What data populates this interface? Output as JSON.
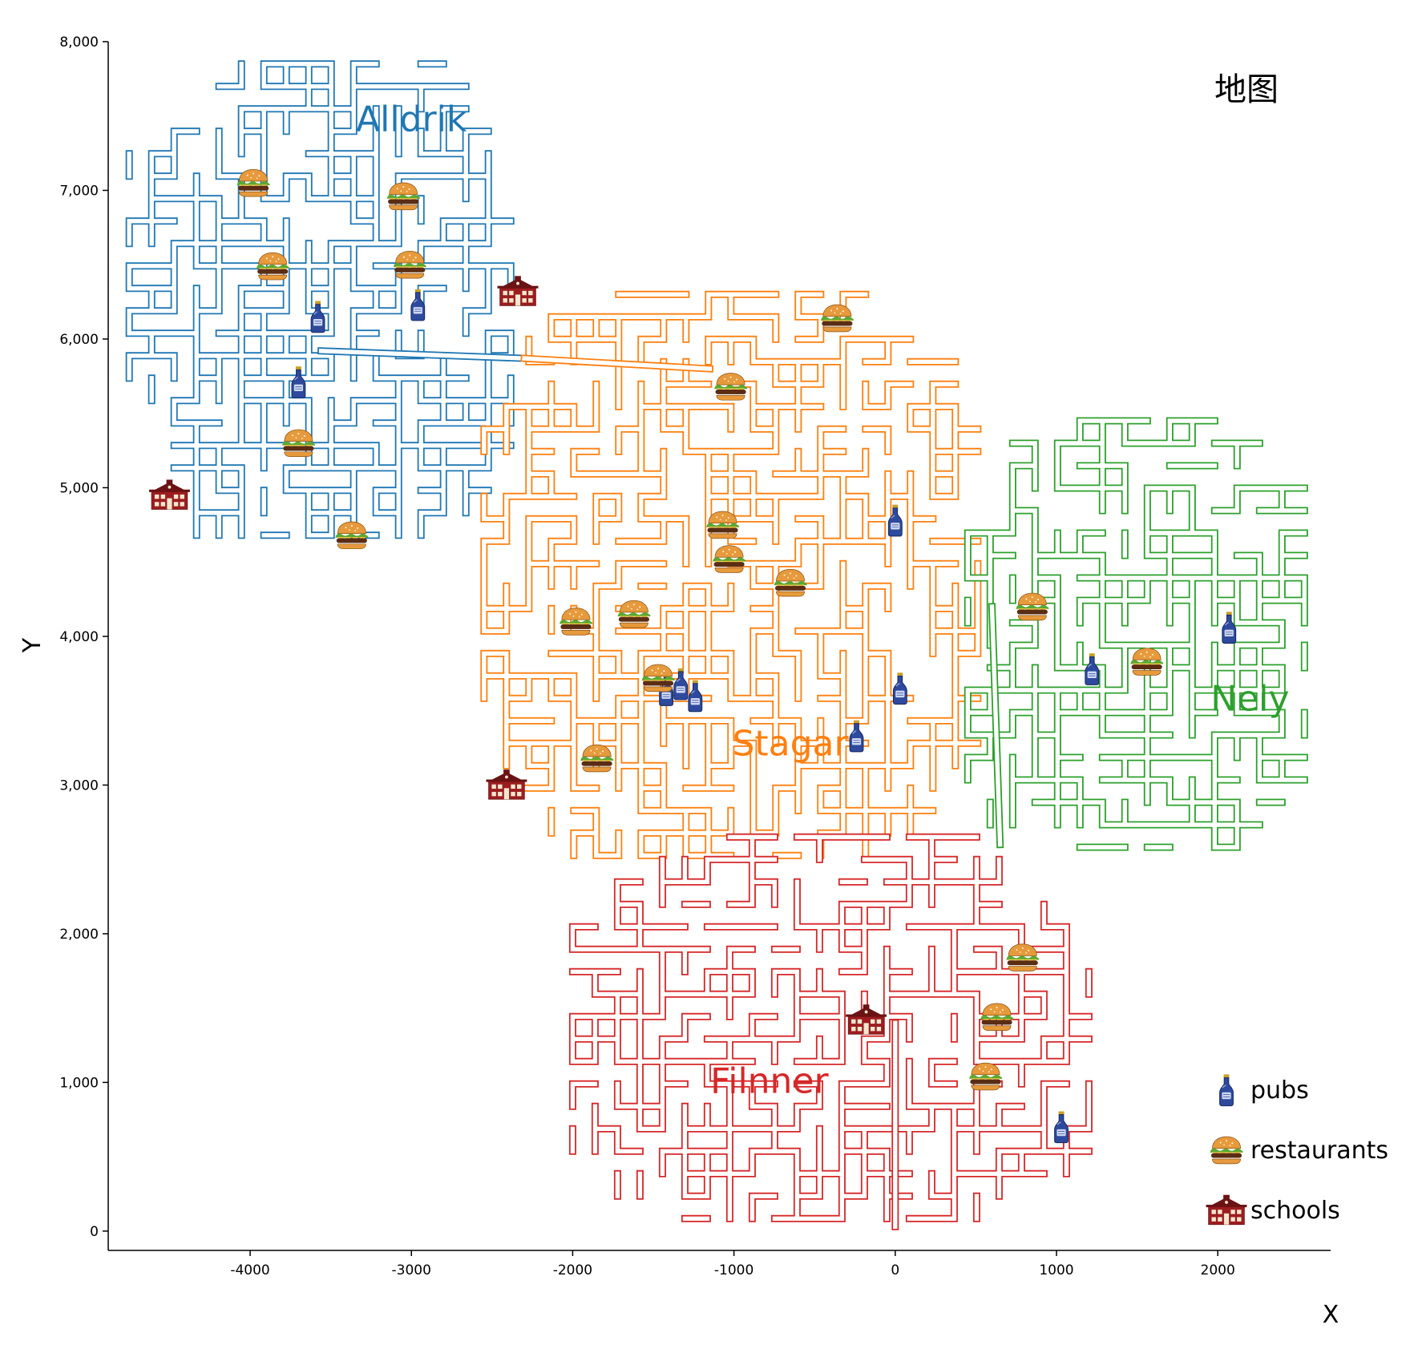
{
  "title": "地图",
  "axes": {
    "x_label": "X",
    "y_label": "Y"
  },
  "chart_data": {
    "type": "scatter",
    "title": "地图",
    "xlabel": "X",
    "ylabel": "Y",
    "xlim": [
      -4880,
      2700
    ],
    "ylim": [
      -130,
      8000
    ],
    "x_ticks": [
      -4000,
      -3000,
      -2000,
      -1000,
      0,
      1000,
      2000
    ],
    "x_tick_labels": [
      "-4000",
      "-3000",
      "-2000",
      "-1000",
      "0",
      "1000",
      "2000"
    ],
    "y_ticks": [
      0,
      1000,
      2000,
      3000,
      4000,
      5000,
      6000,
      7000,
      8000
    ],
    "y_tick_labels": [
      "0",
      "1,000",
      "2,000",
      "3,000",
      "4,000",
      "5,000",
      "6,000",
      "7,000",
      "8,000"
    ],
    "grid": false,
    "legend_position": "bottom-right",
    "districts": [
      {
        "name": "Alldrik",
        "color": "#1f77b4",
        "label_x": -3000,
        "label_y": 7400,
        "x_range": [
          -4750,
          -2300
        ],
        "y_range": [
          4650,
          7850
        ]
      },
      {
        "name": "Stagar",
        "color": "#ff7f0e",
        "label_x": -650,
        "label_y": 3200,
        "x_range": [
          -2550,
          550
        ],
        "y_range": [
          2400,
          6300
        ]
      },
      {
        "name": "Nely",
        "color": "#2ca02c",
        "label_x": 2200,
        "label_y": 3500,
        "x_range": [
          450,
          2650
        ],
        "y_range": [
          2550,
          5450
        ]
      },
      {
        "name": "Filnner",
        "color": "#d62728",
        "label_x": -780,
        "label_y": 930,
        "x_range": [
          -2000,
          1300
        ],
        "y_range": [
          0,
          2650
        ]
      }
    ],
    "series": [
      {
        "name": "pubs",
        "points": [
          [
            -3580,
            6150
          ],
          [
            -2960,
            6230
          ],
          [
            -3700,
            5710
          ],
          [
            0,
            4780
          ],
          [
            -1420,
            3640
          ],
          [
            -1330,
            3680
          ],
          [
            -1240,
            3600
          ],
          [
            30,
            3650
          ],
          [
            -240,
            3330
          ],
          [
            1220,
            3780
          ],
          [
            2070,
            4060
          ],
          [
            1030,
            700
          ]
        ]
      },
      {
        "name": "restaurants",
        "points": [
          [
            -3980,
            7050
          ],
          [
            -3050,
            6960
          ],
          [
            -3860,
            6490
          ],
          [
            -3010,
            6500
          ],
          [
            -360,
            6140
          ],
          [
            -1020,
            5680
          ],
          [
            -3700,
            5300
          ],
          [
            -3370,
            4680
          ],
          [
            -1070,
            4750
          ],
          [
            -1030,
            4520
          ],
          [
            -650,
            4360
          ],
          [
            -1980,
            4100
          ],
          [
            -1620,
            4150
          ],
          [
            -1470,
            3720
          ],
          [
            -1850,
            3180
          ],
          [
            850,
            4200
          ],
          [
            1560,
            3830
          ],
          [
            790,
            1840
          ],
          [
            630,
            1440
          ],
          [
            560,
            1040
          ]
        ]
      },
      {
        "name": "schools",
        "points": [
          [
            -2340,
            6320
          ],
          [
            -4500,
            4950
          ],
          [
            -2410,
            3000
          ],
          [
            -180,
            1420
          ]
        ]
      }
    ]
  },
  "legend": {
    "items": [
      {
        "name": "pubs",
        "icon": "pub-bottle-icon"
      },
      {
        "name": "restaurants",
        "icon": "burger-icon"
      },
      {
        "name": "schools",
        "icon": "school-icon"
      }
    ]
  },
  "icon_colors": {
    "bottle_fill": "#2e4a9e",
    "bottle_dark": "#1a2a5e",
    "bottle_label": "#cfd8f0",
    "bun": "#e79a3c",
    "patty": "#5a2d14",
    "lettuce": "#5aa832",
    "cheese": "#f2c33a",
    "school_roof": "#6b1214",
    "school_wall": "#9c1d1f",
    "school_window": "#f3e7d0"
  }
}
